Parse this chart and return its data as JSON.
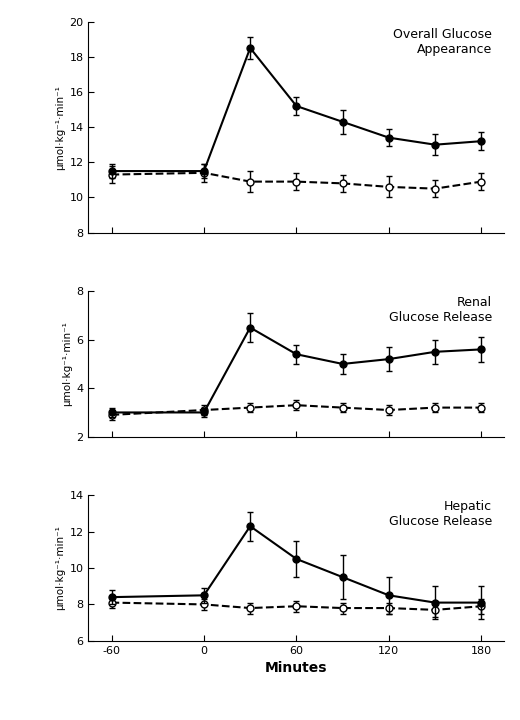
{
  "x_ticks": [
    -60,
    0,
    60,
    120,
    180
  ],
  "x_time": [
    -60,
    0,
    30,
    60,
    90,
    120,
    150,
    180
  ],
  "panel1_title": "Overall Glucose\nAppearance",
  "panel1_ylabel": "μmol·kg⁻¹·min⁻¹",
  "panel1_ylim": [
    8,
    20
  ],
  "panel1_yticks": [
    8,
    10,
    12,
    14,
    16,
    18,
    20
  ],
  "panel1_epi_y": [
    11.5,
    11.5,
    18.5,
    15.2,
    14.3,
    13.4,
    13.0,
    13.2
  ],
  "panel1_epi_err": [
    0.4,
    0.4,
    0.6,
    0.5,
    0.7,
    0.5,
    0.6,
    0.5
  ],
  "panel1_sal_y": [
    11.3,
    11.4,
    10.9,
    10.9,
    10.8,
    10.6,
    10.5,
    10.9
  ],
  "panel1_sal_err": [
    0.5,
    0.5,
    0.6,
    0.5,
    0.5,
    0.6,
    0.5,
    0.5
  ],
  "panel2_title": "Renal\nGlucose Release",
  "panel2_ylabel": "μmol·kg⁻¹·min⁻¹",
  "panel2_ylim": [
    2,
    8
  ],
  "panel2_yticks": [
    2,
    4,
    6,
    8
  ],
  "panel2_epi_y": [
    3.0,
    3.0,
    6.5,
    5.4,
    5.0,
    5.2,
    5.5,
    5.6
  ],
  "panel2_epi_err": [
    0.2,
    0.2,
    0.6,
    0.4,
    0.4,
    0.5,
    0.5,
    0.5
  ],
  "panel2_sal_y": [
    2.9,
    3.1,
    3.2,
    3.3,
    3.2,
    3.1,
    3.2,
    3.2
  ],
  "panel2_sal_err": [
    0.2,
    0.2,
    0.2,
    0.2,
    0.2,
    0.2,
    0.2,
    0.2
  ],
  "panel3_title": "Hepatic\nGlucose Release",
  "panel3_ylabel": "μmol·kg⁻¹·min⁻¹",
  "panel3_ylim": [
    6,
    14
  ],
  "panel3_yticks": [
    6,
    8,
    10,
    12,
    14
  ],
  "panel3_epi_y": [
    8.4,
    8.5,
    12.3,
    10.5,
    9.5,
    8.5,
    8.1,
    8.1
  ],
  "panel3_epi_err": [
    0.4,
    0.4,
    0.8,
    1.0,
    1.2,
    1.0,
    0.9,
    0.9
  ],
  "panel3_sal_y": [
    8.1,
    8.0,
    7.8,
    7.9,
    7.8,
    7.8,
    7.7,
    7.9
  ],
  "panel3_sal_err": [
    0.3,
    0.3,
    0.3,
    0.3,
    0.3,
    0.3,
    0.4,
    0.4
  ],
  "xlabel": "Minutes",
  "linewidth": 1.5,
  "markersize": 5,
  "capsize": 2,
  "elinewidth": 1.0,
  "title_fontsize": 9,
  "tick_labelsize": 8,
  "ylabel_fontsize": 7.5
}
